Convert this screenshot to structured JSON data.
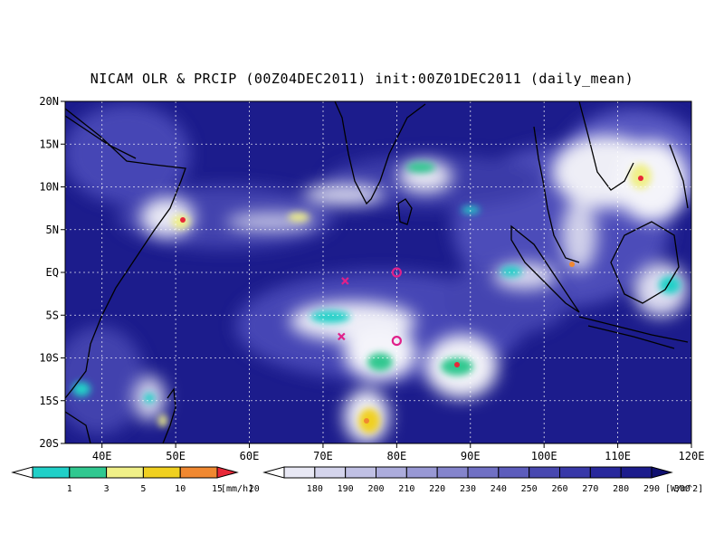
{
  "title": "NICAM OLR & PRCIP (00Z04DEC2011) init:00Z01DEC2011 (daily_mean)",
  "lat_labels": [
    "20N",
    "15N",
    "10N",
    "5N",
    "EQ",
    "5S",
    "10S",
    "15S",
    "20S"
  ],
  "lon_labels": [
    "40E",
    "50E",
    "60E",
    "70E",
    "80E",
    "90E",
    "100E",
    "110E",
    "120E"
  ],
  "map_domain": {
    "lon": [
      35,
      120
    ],
    "lat": [
      -20,
      20
    ]
  },
  "colors": {
    "background_olr": "#1c1c8c",
    "ocean_mid": "#3a3ab0",
    "cloud_white": "#f2f2f8",
    "coast": "#000000",
    "gridline": "#ffffff",
    "marker_circle": "#e0208a",
    "marker_cross": "#e0208a"
  },
  "markers": [
    {
      "type": "circle",
      "lon": 80,
      "lat": 0
    },
    {
      "type": "cross",
      "lon": 73,
      "lat": -1
    },
    {
      "type": "cross",
      "lon": 72.5,
      "lat": -7.5
    },
    {
      "type": "circle",
      "lon": 80,
      "lat": -8
    }
  ],
  "precip_legend": {
    "labels": [
      "1",
      "3",
      "5",
      "10",
      "15",
      "20"
    ],
    "unit": "[mm/h]",
    "colors": [
      "#ffffff",
      "#20d0c8",
      "#30c890",
      "#f0f088",
      "#f0d020",
      "#f08830",
      "#e82838"
    ]
  },
  "olr_legend": {
    "labels": [
      "180",
      "190",
      "200",
      "210",
      "220",
      "230",
      "240",
      "250",
      "260",
      "270",
      "280",
      "290",
      "300"
    ],
    "unit": "[W/m^2]",
    "colors": [
      "#ffffff",
      "#e8e8f4",
      "#d4d4ec",
      "#c0c0e4",
      "#acacdc",
      "#9898d4",
      "#8484cc",
      "#7070c4",
      "#5c5cbc",
      "#4848b0",
      "#3838a8",
      "#28289c",
      "#1c1c8c",
      "#101070"
    ]
  }
}
